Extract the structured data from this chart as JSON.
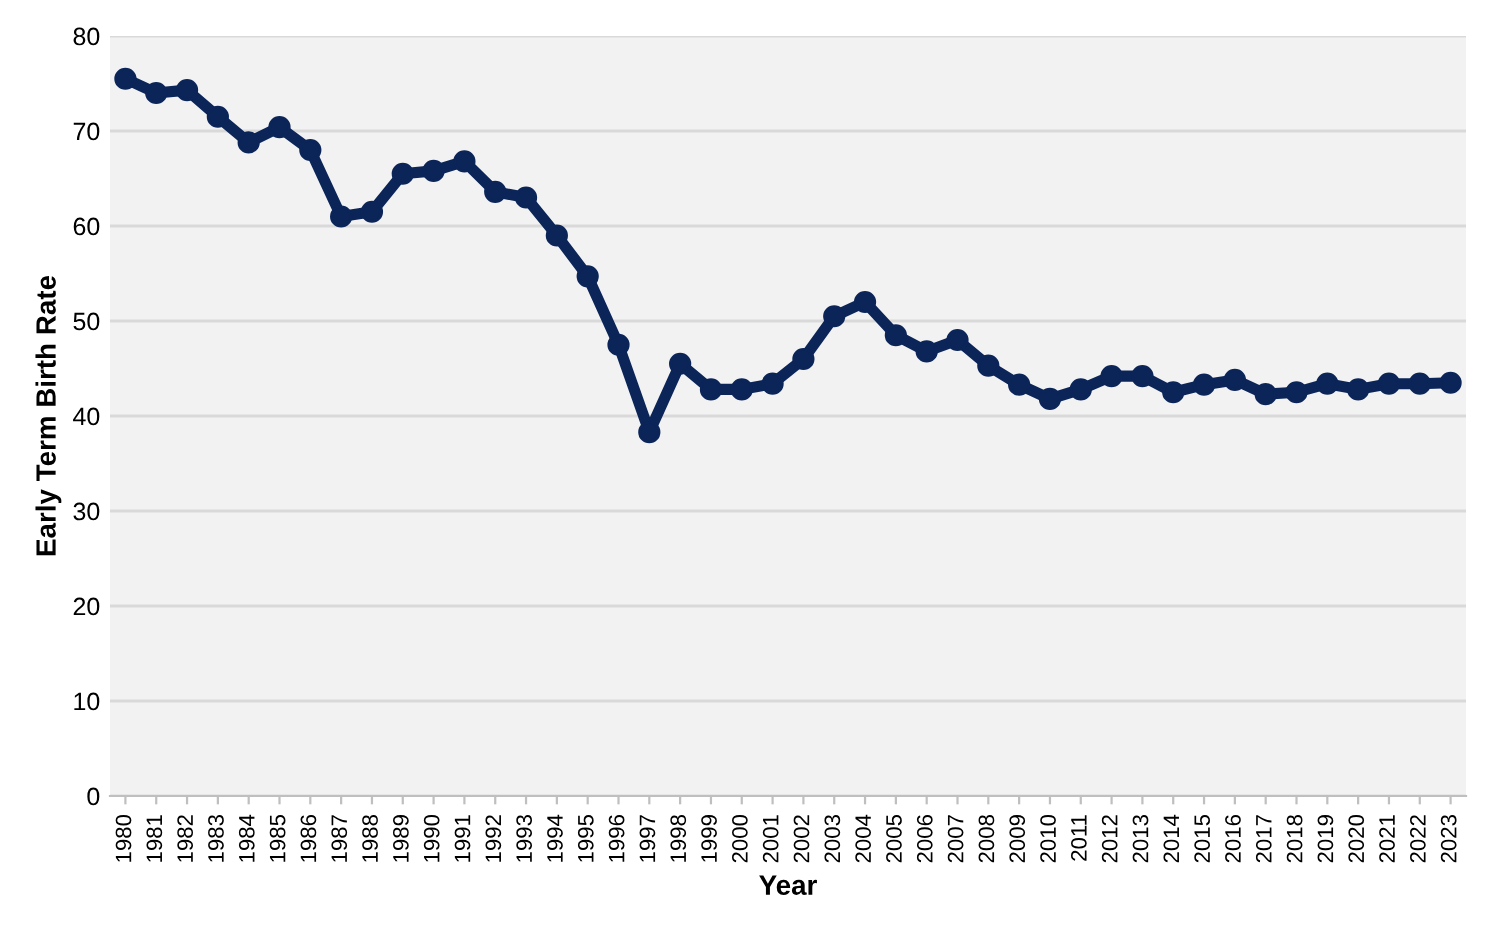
{
  "chart_data": {
    "type": "line",
    "xlabel": "Year",
    "ylabel": "Early Term Birth Rate",
    "categories": [
      "1980",
      "1981",
      "1982",
      "1983",
      "1984",
      "1985",
      "1986",
      "1987",
      "1988",
      "1989",
      "1990",
      "1991",
      "1992",
      "1993",
      "1994",
      "1995",
      "1996",
      "1997",
      "1998",
      "1999",
      "2000",
      "2001",
      "2002",
      "2003",
      "2004",
      "2005",
      "2006",
      "2007",
      "2008",
      "2009",
      "2010",
      "2011",
      "2012",
      "2013",
      "2014",
      "2015",
      "2016",
      "2017",
      "2018",
      "2019",
      "2020",
      "2021",
      "2022",
      "2023"
    ],
    "series": [
      {
        "color": "#0b2559",
        "values": [
          75.5,
          74,
          74.3,
          71.5,
          68.8,
          70.4,
          68,
          61,
          61.5,
          65.5,
          65.8,
          66.8,
          63.6,
          63,
          59,
          54.7,
          47.5,
          38.3,
          45.5,
          42.8,
          42.8,
          43.4,
          46,
          50.5,
          52,
          48.5,
          46.8,
          48,
          45.3,
          43.3,
          41.8,
          42.8,
          44.2,
          44.2,
          42.5,
          43.3,
          43.8,
          42.3,
          42.5,
          43.4,
          42.8,
          43.4,
          43.4,
          43.5
        ]
      }
    ],
    "ylim": [
      0,
      80
    ],
    "yticks": [
      0,
      10,
      20,
      30,
      40,
      50,
      60,
      70,
      80
    ],
    "grid": "y",
    "marker": "circle",
    "line_style": "solid"
  }
}
